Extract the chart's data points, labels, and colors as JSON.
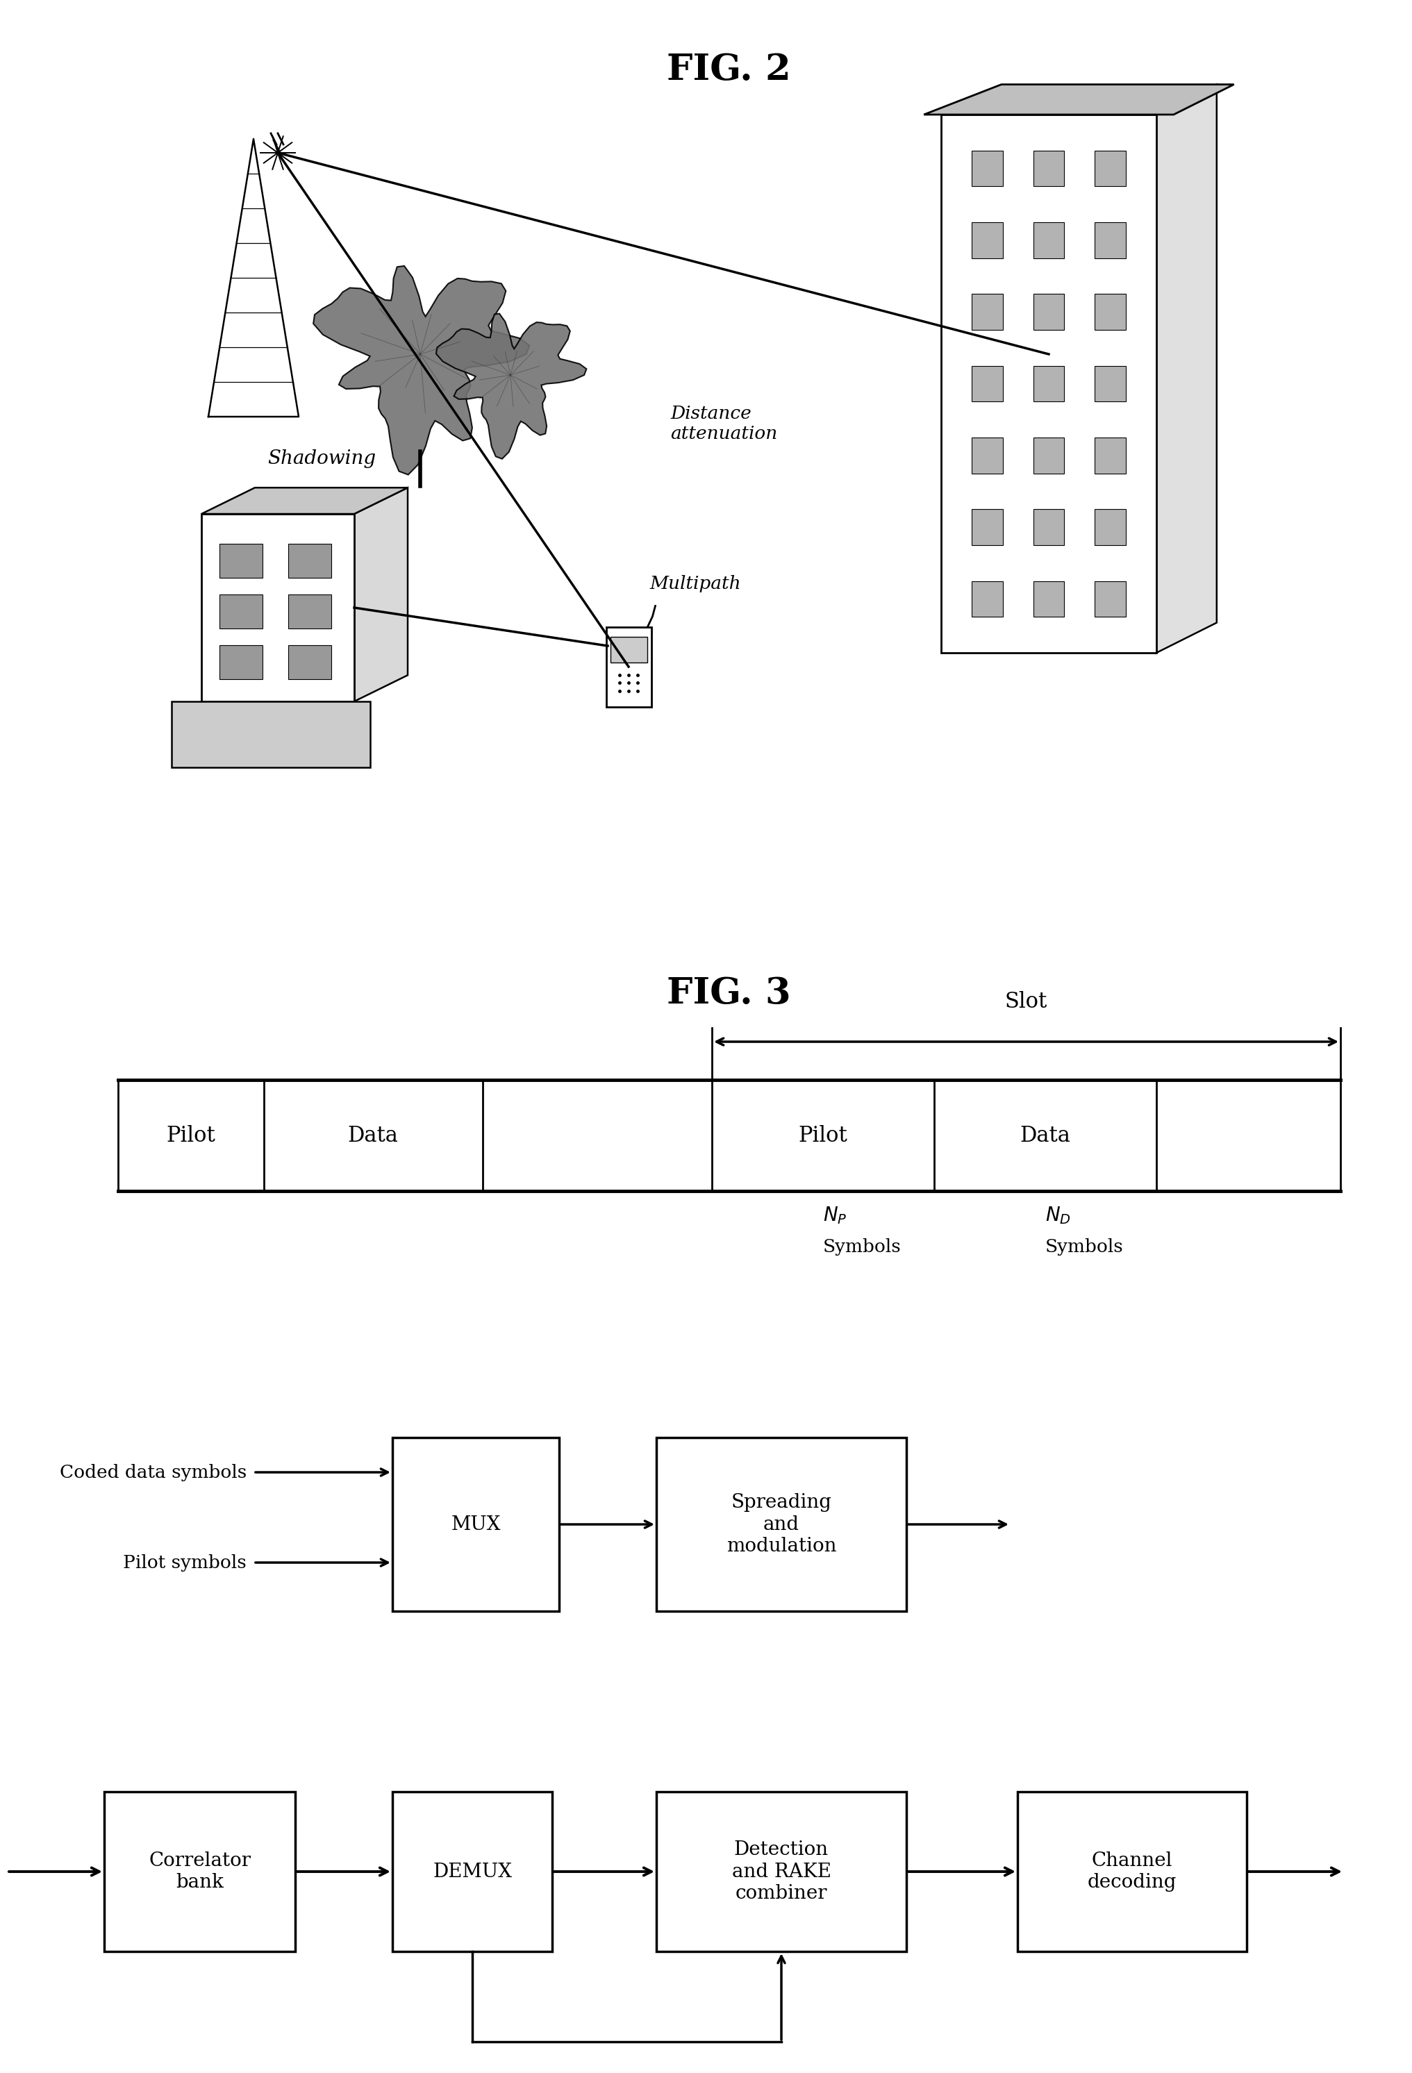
{
  "fig2_title": "FIG. 2",
  "fig3_title": "FIG. 3",
  "bg_color": "#ffffff",
  "line_color": "#000000",
  "slot_label": "Slot",
  "cell_labels_1": [
    "Pilot",
    "Data",
    "Pilot",
    "Data"
  ],
  "coded_data_label": "Coded data symbols",
  "pilot_symbols_label": "Pilot symbols",
  "mux_label": "MUX",
  "spreading_label": "Spreading\nand\nmodulation",
  "correlator_label": "Correlator\nbank",
  "demux_label": "DEMUX",
  "detection_label": "Detection\nand RAKE\ncombiner",
  "channel_label": "Channel\ndecoding",
  "shadowing_label": "Shadowing",
  "distance_label": "Distance\nattenuation",
  "multipath_label": "Multipath",
  "np_main": "N",
  "nd_main": "N",
  "p_sub": "P",
  "d_sub": "D",
  "symbols_label": "Symbols",
  "font_size_title": 38,
  "font_size_cell": 22,
  "font_size_block": 20,
  "font_size_label": 19,
  "font_size_sub": 16,
  "lw_thick": 3.0,
  "lw_med": 2.0
}
